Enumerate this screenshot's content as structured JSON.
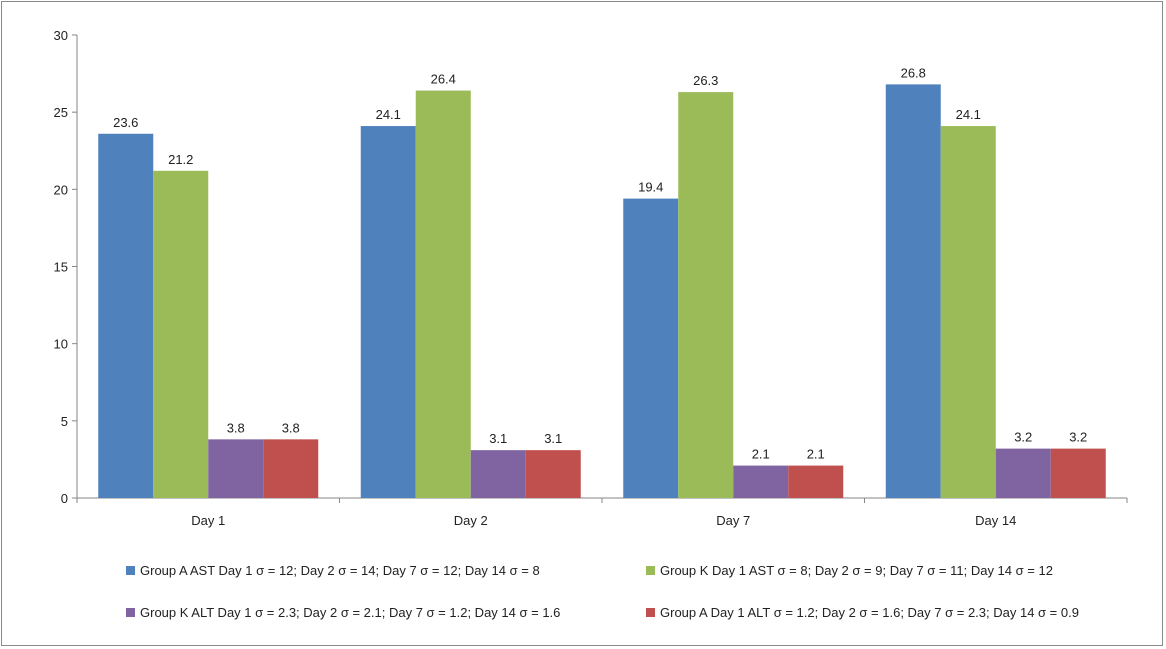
{
  "chart_data": {
    "type": "bar",
    "title": "",
    "xlabel": "",
    "ylabel": "",
    "ylim": [
      0,
      30
    ],
    "yticks": [
      0,
      5,
      10,
      15,
      20,
      25,
      30
    ],
    "categories": [
      "Day 1",
      "Day 2",
      "Day 7",
      "Day 14"
    ],
    "series": [
      {
        "name": "Group A AST Day 1 σ = 12; Day 2 σ = 14; Day 7 σ = 12; Day 14 σ = 8",
        "color": "#4f81bd",
        "values": [
          23.6,
          24.1,
          19.4,
          26.8
        ]
      },
      {
        "name": "Group K Day 1 AST σ = 8; Day 2 σ = 9; Day 7 σ = 11; Day 14 σ = 12",
        "color": "#9bbb59",
        "values": [
          21.2,
          26.4,
          26.3,
          24.1
        ]
      },
      {
        "name": "Group K ALT Day 1 σ = 2.3; Day 2 σ = 2.1; Day 7 σ = 1.2; Day 14 σ = 1.6",
        "color": "#8064a2",
        "values": [
          3.8,
          3.1,
          2.1,
          3.2
        ]
      },
      {
        "name": "Group A Day 1 ALT σ = 1.2; Day 2 σ = 1.6; Day 7 σ = 2.3; Day 14 σ = 0.9",
        "color": "#c0504d",
        "values": [
          3.8,
          3.1,
          2.1,
          3.2
        ]
      }
    ],
    "grid": false,
    "legend_position": "bottom"
  }
}
